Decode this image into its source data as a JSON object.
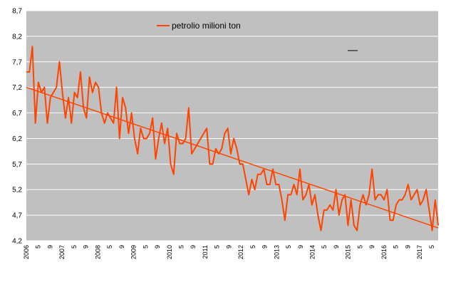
{
  "chart_data": {
    "type": "line",
    "title": "",
    "xlabel": "",
    "ylabel": "",
    "ylim": [
      4.2,
      8.7
    ],
    "yticks": [
      "4,2",
      "4,7",
      "5,2",
      "5,7",
      "6,2",
      "6,7",
      "7,2",
      "7,7",
      "8,2",
      "8,7"
    ],
    "ytick_values": [
      4.2,
      4.7,
      5.2,
      5.7,
      6.2,
      6.7,
      7.2,
      7.7,
      8.2,
      8.7
    ],
    "xticks": [
      "2006",
      "5",
      "9",
      "2007",
      "5",
      "9",
      "2008",
      "5",
      "9",
      "2009",
      "5",
      "9",
      "2010",
      "5",
      "9",
      "2011",
      "5",
      "9",
      "2012",
      "5",
      "9",
      "2013",
      "5",
      "9",
      "2014",
      "5",
      "9",
      "2015",
      "5",
      "9",
      "2016",
      "5",
      "9",
      "2017",
      "5"
    ],
    "grid": true,
    "legend": "top-center",
    "series": [
      {
        "name": "petrolio milioni ton",
        "color": "#ff4400",
        "values": [
          7.5,
          7.5,
          8.0,
          6.5,
          7.3,
          7.1,
          7.2,
          6.5,
          7.0,
          7.1,
          7.2,
          7.7,
          7.1,
          6.6,
          7.0,
          6.5,
          7.1,
          7.0,
          7.5,
          6.8,
          6.6,
          7.4,
          7.1,
          7.3,
          7.2,
          6.7,
          6.5,
          6.7,
          6.6,
          6.5,
          7.2,
          6.2,
          7.0,
          6.8,
          6.3,
          6.7,
          6.2,
          5.9,
          6.4,
          6.2,
          6.2,
          6.3,
          6.6,
          5.8,
          6.2,
          6.5,
          6.1,
          6.4,
          5.7,
          5.5,
          6.3,
          6.1,
          6.1,
          6.2,
          6.8,
          5.9,
          6.0,
          6.1,
          6.2,
          6.3,
          6.4,
          5.7,
          5.7,
          6.0,
          5.9,
          6.0,
          6.3,
          6.4,
          5.9,
          6.2,
          6.0,
          5.7,
          5.7,
          5.4,
          5.1,
          5.4,
          5.2,
          5.5,
          5.5,
          5.6,
          5.3,
          5.3,
          5.6,
          5.3,
          5.3,
          5.0,
          4.6,
          5.1,
          5.1,
          5.3,
          5.1,
          5.6,
          5.0,
          5.1,
          5.3,
          4.9,
          5.1,
          4.7,
          4.4,
          4.8,
          4.8,
          4.9,
          4.8,
          5.2,
          4.7,
          5.0,
          5.1,
          4.5,
          5.0,
          4.5,
          4.4,
          4.9,
          5.1,
          4.9,
          5.1,
          5.6,
          5.0,
          5.1,
          5.1,
          5.0,
          5.2,
          4.6,
          4.6,
          4.9,
          5.0,
          5.0,
          5.1,
          5.3,
          5.0,
          5.1,
          5.2,
          4.9,
          5.0,
          5.2,
          4.8,
          4.4,
          5.0,
          4.5
        ]
      },
      {
        "name": "",
        "color": "#ff4400",
        "kind": "trendline",
        "values": [
          7.2,
          4.45
        ]
      }
    ]
  }
}
